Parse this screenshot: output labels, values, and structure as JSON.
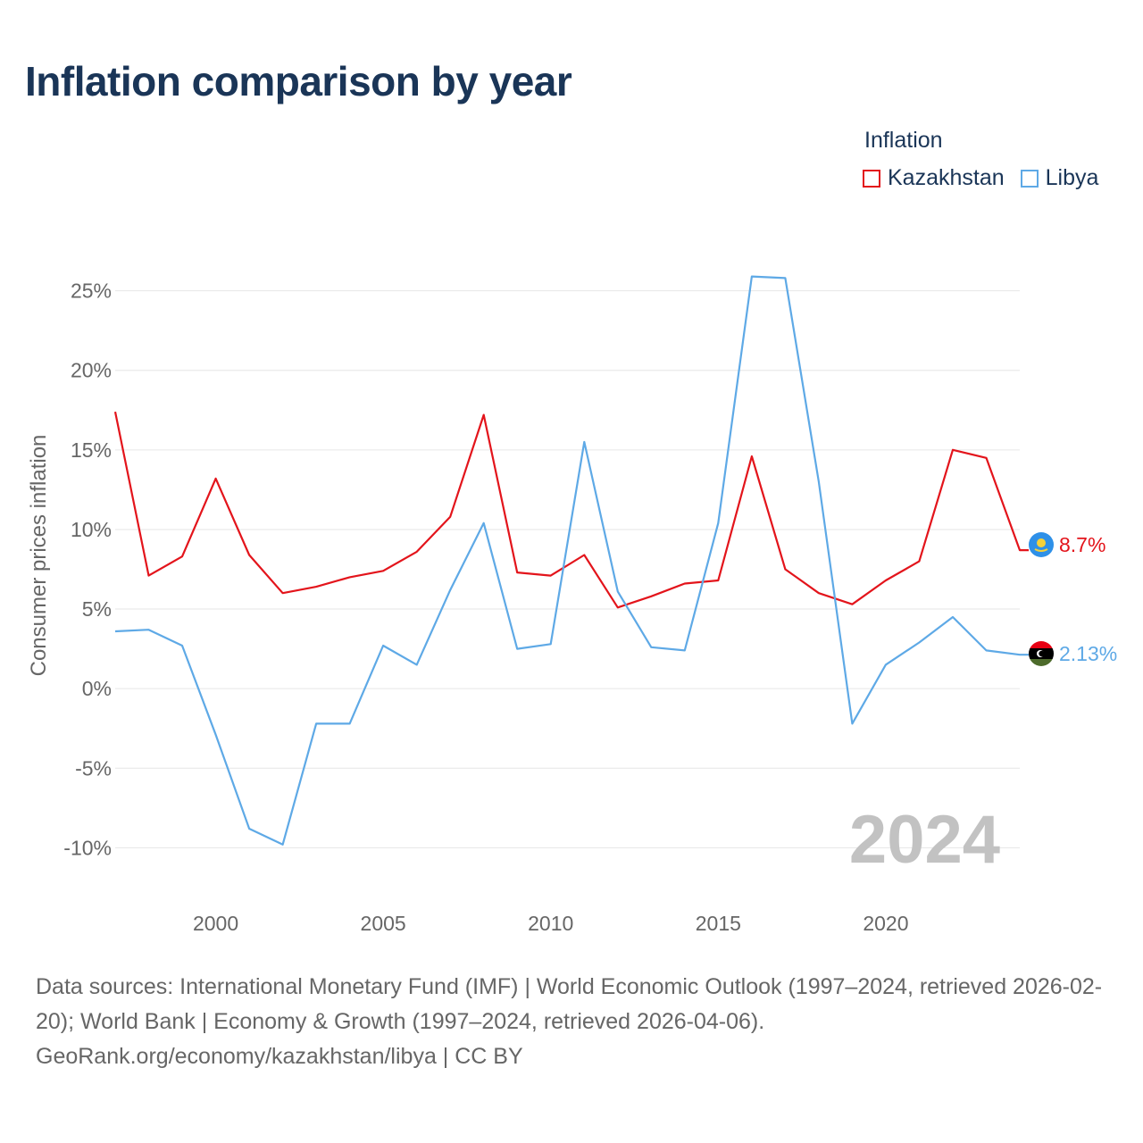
{
  "title": "Inflation comparison by year",
  "legend": {
    "title": "Inflation",
    "items": [
      {
        "name": "Kazakhstan",
        "color": "#e3141b"
      },
      {
        "name": "Libya",
        "color": "#5ea9e6"
      }
    ]
  },
  "chart_data": {
    "type": "line",
    "title": "Inflation comparison by year",
    "xlabel": "",
    "ylabel": "Consumer prices inflation",
    "xlim": [
      1997,
      2024
    ],
    "ylim": [
      -12,
      27
    ],
    "x_ticks": [
      2000,
      2005,
      2010,
      2015,
      2020
    ],
    "x_tick_labels": [
      "2000",
      "2005",
      "2010",
      "2015",
      "2020"
    ],
    "y_ticks": [
      -10,
      -5,
      0,
      5,
      10,
      15,
      20,
      25
    ],
    "y_tick_labels": [
      "-10%",
      "-5%",
      "0%",
      "5%",
      "10%",
      "15%",
      "20%",
      "25%"
    ],
    "grid": true,
    "x": [
      1997,
      1998,
      1999,
      2000,
      2001,
      2002,
      2003,
      2004,
      2005,
      2006,
      2007,
      2008,
      2009,
      2010,
      2011,
      2012,
      2013,
      2014,
      2015,
      2016,
      2017,
      2018,
      2019,
      2020,
      2021,
      2022,
      2023,
      2024
    ],
    "series": [
      {
        "name": "Kazakhstan",
        "color": "#e3141b",
        "values": [
          17.4,
          7.1,
          8.3,
          13.2,
          8.4,
          6.0,
          6.4,
          7.0,
          7.4,
          8.6,
          10.8,
          17.2,
          7.3,
          7.1,
          8.4,
          5.1,
          5.8,
          6.6,
          6.8,
          14.6,
          7.5,
          6.0,
          5.3,
          6.8,
          8.0,
          15.0,
          14.5,
          8.7
        ],
        "end_label": "8.7%"
      },
      {
        "name": "Libya",
        "color": "#5ea9e6",
        "values": [
          3.6,
          3.7,
          2.7,
          -2.9,
          -8.8,
          -9.8,
          -2.2,
          -2.2,
          2.7,
          1.5,
          6.2,
          10.4,
          2.5,
          2.8,
          15.5,
          6.1,
          2.6,
          2.4,
          10.4,
          25.9,
          25.8,
          13.0,
          -2.2,
          1.5,
          2.9,
          4.5,
          2.4,
          2.13
        ],
        "end_label": "2.13%"
      }
    ],
    "annotation": "2024"
  },
  "footer": {
    "sources": "Data sources: International Monetary Fund (IMF) | World Economic Outlook (1997–2024, retrieved 2026-02-20); World Bank | Economy & Growth (1997–2024, retrieved 2026-04-06).",
    "credit": "GeoRank.org/economy/kazakhstan/libya | CC BY"
  }
}
